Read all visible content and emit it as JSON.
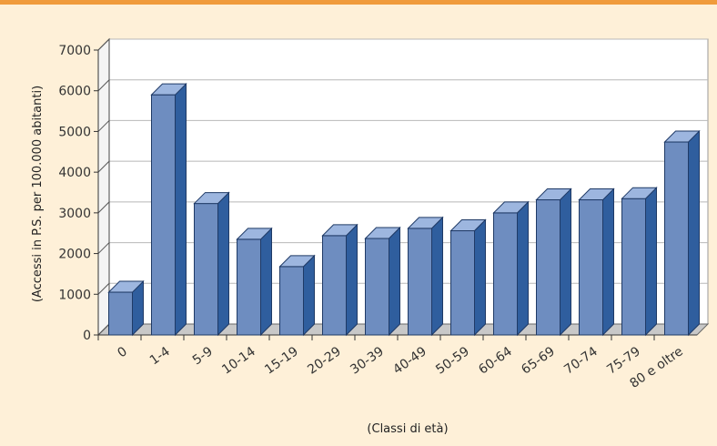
{
  "chart_data": {
    "type": "bar",
    "title": "",
    "xlabel": "(Classi di età)",
    "ylabel": "(Accessi in P.S. per 100.000 abitanti)",
    "categories": [
      "0",
      "1-4",
      "5-9",
      "10-14",
      "15-19",
      "20-29",
      "30-39",
      "40-49",
      "50-59",
      "60-64",
      "65-69",
      "70-74",
      "75-79",
      "80 e oltre"
    ],
    "values": [
      1050,
      5900,
      3230,
      2350,
      1680,
      2440,
      2370,
      2620,
      2560,
      3000,
      3320,
      3320,
      3350,
      4740
    ],
    "ylim": [
      0,
      7000
    ],
    "yticks": [
      "0",
      "1000",
      "2000",
      "3000",
      "4000",
      "5000",
      "6000",
      "7000"
    ],
    "grid": true,
    "style": "3d-column"
  },
  "colors": {
    "background": "#fef0d8",
    "top_border": "#f09b3c",
    "plot_wall": "#ffffff",
    "plot_floor": "#c8c8c8",
    "bar_front": "#6e8dc0",
    "bar_top": "#9db6df",
    "bar_side": "#2f5e9e",
    "gridline": "#b8b8b8"
  }
}
